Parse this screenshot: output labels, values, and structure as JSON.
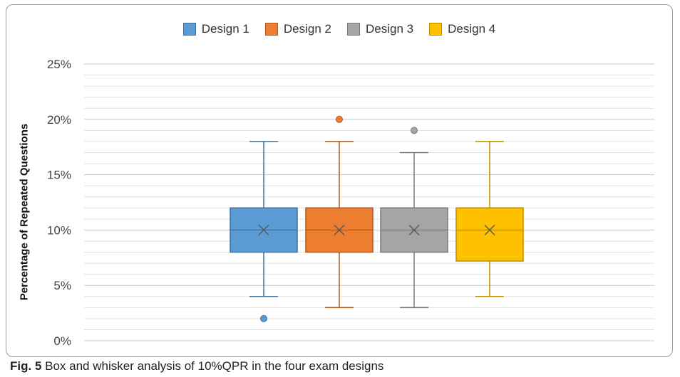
{
  "chart_data": {
    "type": "box",
    "title": "",
    "ylabel": "Percentage of Repeated Questions",
    "xlabel": "",
    "ylim": [
      0,
      25
    ],
    "y_ticks": [
      "0%",
      "5%",
      "10%",
      "15%",
      "20%",
      "25%"
    ],
    "y_tick_values": [
      0,
      5,
      10,
      15,
      20,
      25
    ],
    "minor_grid_step": 1,
    "grid": true,
    "legend_position": "top",
    "series": [
      {
        "name": "Design 1",
        "color": "#5B9BD5",
        "stroke": "#41719C",
        "whisker_low": 4,
        "q1": 8,
        "median": 10,
        "q3": 12,
        "whisker_high": 18,
        "mean": 10,
        "outliers": [
          2
        ]
      },
      {
        "name": "Design 2",
        "color": "#ED7D31",
        "stroke": "#AE5A21",
        "whisker_low": 3,
        "q1": 8,
        "median": 10,
        "q3": 12,
        "whisker_high": 18,
        "mean": 10,
        "outliers": [
          20
        ]
      },
      {
        "name": "Design 3",
        "color": "#A5A5A5",
        "stroke": "#787878",
        "whisker_low": 3,
        "q1": 8,
        "median": 10,
        "q3": 12,
        "whisker_high": 17,
        "mean": 10,
        "outliers": [
          19
        ]
      },
      {
        "name": "Design 4",
        "color": "#FFC000",
        "stroke": "#BC8C00",
        "whisker_low": 4,
        "q1": 7.2,
        "median": 10,
        "q3": 12,
        "whisker_high": 18,
        "mean": 10,
        "outliers": []
      }
    ]
  },
  "caption": {
    "label": "Fig. 5",
    "text": " Box and whisker analysis of 10%QPR in the four exam designs"
  }
}
